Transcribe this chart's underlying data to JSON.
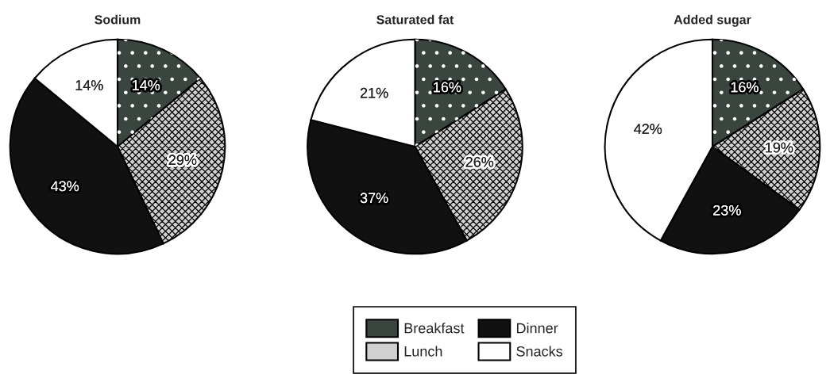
{
  "chart_data": {
    "type": "pie",
    "categories": [
      "Breakfast",
      "Lunch",
      "Dinner",
      "Snacks"
    ],
    "colors": [
      "#3b4540",
      "#d0d0d0",
      "#111111",
      "#ffffff"
    ],
    "legend": "bottom",
    "series": [
      {
        "name": "Sodium",
        "values": [
          14,
          29,
          43,
          14
        ],
        "value_labels": [
          "14%",
          "29%",
          "43%",
          "14%"
        ]
      },
      {
        "name": "Saturated fat",
        "values": [
          16,
          26,
          37,
          21
        ],
        "value_labels": [
          "16%",
          "26%",
          "37%",
          "21%"
        ]
      },
      {
        "name": "Added sugar",
        "values": [
          16,
          19,
          23,
          42
        ],
        "value_labels": [
          "16%",
          "19%",
          "23%",
          "42%"
        ]
      }
    ]
  }
}
